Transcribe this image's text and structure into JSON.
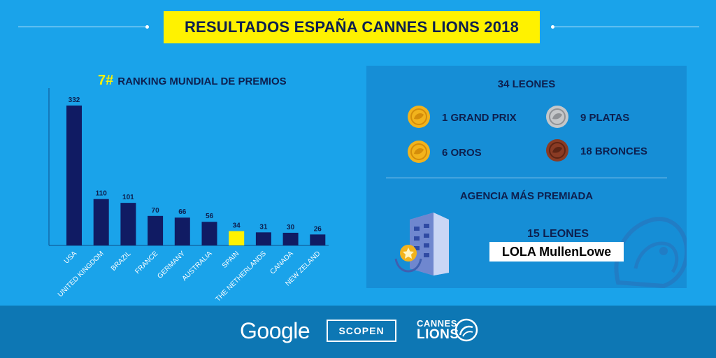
{
  "header": {
    "title": "RESULTADOS ESPAÑA CANNES LIONS 2018"
  },
  "ranking": {
    "rank": "7#",
    "title": "RANKING MUNDIAL DE PREMIOS"
  },
  "chart_data": {
    "type": "bar",
    "categories": [
      "USA",
      "UNITED KINGDOM",
      "BRAZIL",
      "FRANCE",
      "GERMANY",
      "AUSTRALIA",
      "SPAIN",
      "THE NETHERLANDS",
      "CANADA",
      "NEW ZELAND"
    ],
    "values": [
      332,
      110,
      101,
      70,
      66,
      56,
      34,
      31,
      30,
      26
    ],
    "highlight_category": "SPAIN",
    "ylim": [
      0,
      370
    ],
    "grid": false,
    "bar_color": "#101b63",
    "highlight_color": "#fff200"
  },
  "awards": {
    "total": "34 LEONES",
    "grand_prix": "1 GRAND PRIX",
    "platas": "9 PLATAS",
    "oros": "6 OROS",
    "bronces": "18 BRONCES",
    "gold_color": "#f2b31c",
    "silver_color": "#c5c7c9",
    "bronze_color": "#8a3b24"
  },
  "agency": {
    "title": "AGENCIA MÁS PREMIADA",
    "count": "15 LEONES",
    "name": "LOLA MullenLowe"
  },
  "footer": {
    "google": "Google",
    "scopen": "SCOPEN",
    "cannes_line1": "CANNES",
    "cannes_line2": "LIONS"
  }
}
